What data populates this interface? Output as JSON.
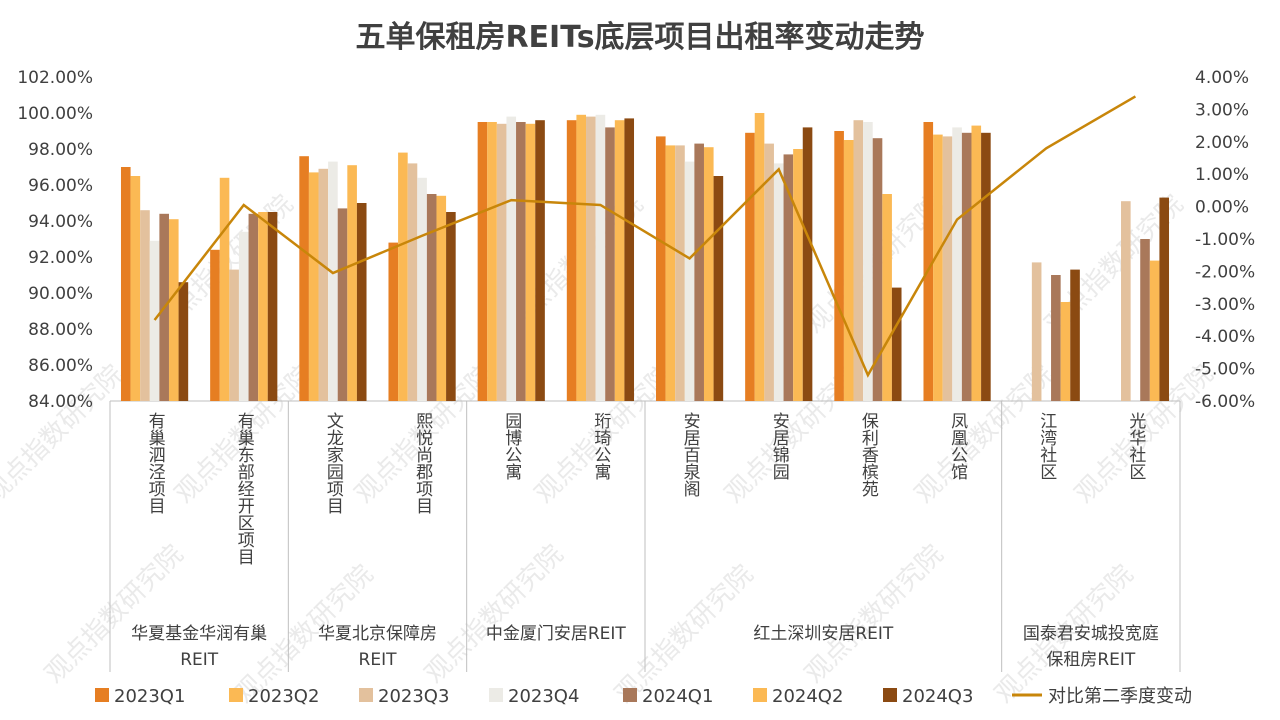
{
  "chart_data": {
    "type": "bar",
    "title": "五单保租房REITs底层项目出租率变动走势",
    "xlabel": "",
    "ylabel": "",
    "ylim": [
      84,
      102
    ],
    "y2lim": [
      -6,
      4
    ],
    "y_ticks": [
      "84.00%",
      "86.00%",
      "88.00%",
      "90.00%",
      "92.00%",
      "94.00%",
      "96.00%",
      "98.00%",
      "100.00%",
      "102.00%"
    ],
    "y2_ticks": [
      "-6.00%",
      "-5.00%",
      "-4.00%",
      "-3.00%",
      "-2.00%",
      "-1.00%",
      "0.00%",
      "1.00%",
      "2.00%",
      "3.00%",
      "4.00%"
    ],
    "categories": [
      "有巢泗泾项目",
      "有巢东部经开区项目",
      "文龙家园项目",
      "熙悦尚郡项目",
      "园博公寓",
      "珩琦公寓",
      "安居百泉阁",
      "安居锦园",
      "保利香槟苑",
      "凤凰公馆",
      "江湾社区",
      "光华社区"
    ],
    "groups": [
      {
        "name": "华夏基金华润有巢REIT",
        "lines": [
          "华夏基金华润有巢",
          "REIT"
        ],
        "count": 2
      },
      {
        "name": "华夏北京保障房REIT",
        "lines": [
          "华夏北京保障房",
          "REIT"
        ],
        "count": 2
      },
      {
        "name": "中金厦门安居REIT",
        "lines": [
          "中金厦门安居REIT"
        ],
        "count": 2
      },
      {
        "name": "红土深圳安居REIT",
        "lines": [
          "红土深圳安居REIT"
        ],
        "count": 4
      },
      {
        "name": "国泰君安城投宽庭保租房REIT",
        "lines": [
          "国泰君安城投宽庭",
          "保租房REIT"
        ],
        "count": 2
      }
    ],
    "series": [
      {
        "name": "2023Q1",
        "color": "#e67e22",
        "values": [
          97.0,
          92.4,
          97.6,
          92.8,
          99.5,
          99.6,
          98.7,
          98.9,
          99.0,
          99.5,
          null,
          null
        ]
      },
      {
        "name": "2023Q2",
        "color": "#fbb954",
        "values": [
          96.5,
          96.4,
          96.7,
          97.8,
          99.5,
          99.9,
          98.2,
          100.0,
          98.5,
          98.8,
          null,
          null
        ]
      },
      {
        "name": "2023Q3",
        "color": "#e3c19d",
        "values": [
          94.6,
          91.3,
          96.9,
          97.2,
          99.4,
          99.8,
          98.2,
          98.3,
          99.6,
          98.7,
          91.7,
          95.1
        ]
      },
      {
        "name": "2023Q4",
        "color": "#ecebe6",
        "values": [
          92.9,
          93.4,
          97.3,
          96.4,
          99.8,
          99.9,
          97.3,
          97.2,
          99.5,
          99.2,
          null,
          null
        ]
      },
      {
        "name": "2024Q1",
        "color": "#a9785a",
        "values": [
          94.4,
          94.4,
          94.7,
          95.5,
          99.5,
          99.2,
          98.3,
          97.7,
          98.6,
          98.9,
          91.0,
          93.0
        ]
      },
      {
        "name": "2024Q2",
        "color": "#fbb954",
        "values": [
          94.1,
          94.5,
          97.1,
          95.4,
          99.4,
          99.6,
          98.1,
          98.0,
          95.5,
          99.3,
          89.5,
          91.8
        ]
      },
      {
        "name": "2024Q3",
        "color": "#8b4a12",
        "values": [
          90.6,
          94.5,
          95.0,
          94.5,
          99.6,
          99.7,
          96.5,
          99.2,
          90.3,
          98.9,
          91.3,
          95.3
        ]
      }
    ],
    "line_series": {
      "name": "对比第二季度变动",
      "color": "#c8860a",
      "axis": "right",
      "values": [
        -3.5,
        0.05,
        -2.05,
        -0.9,
        0.2,
        0.05,
        -1.6,
        1.15,
        -5.2,
        -0.4,
        1.8,
        3.4
      ]
    },
    "grid": false,
    "legend_position": "bottom",
    "watermark": "观点指数研究院"
  }
}
